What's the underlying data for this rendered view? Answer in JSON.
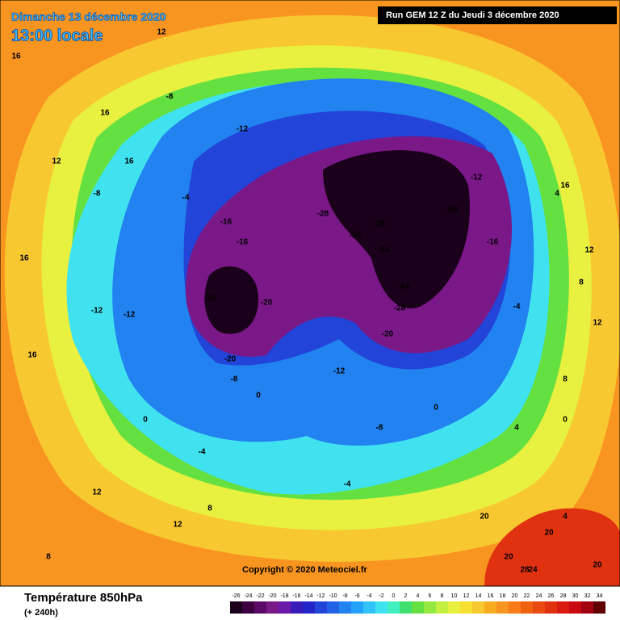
{
  "header": {
    "date": "Dimanche 13 décembre 2020",
    "time": "13:00 locale",
    "run": "Run GEM 12 Z du Jeudi 3 décembre 2020"
  },
  "footer": {
    "title": "Température 850hPa",
    "lead": "(+ 240h)",
    "copyright": "Copyright © 2020 Meteociel.fr"
  },
  "colorbar": {
    "ticks": [
      -26,
      -24,
      -22,
      -20,
      -18,
      -16,
      -14,
      -12,
      -10,
      -8,
      -6,
      -4,
      -2,
      0,
      2,
      4,
      6,
      8,
      10,
      12,
      14,
      16,
      18,
      20,
      22,
      24,
      26,
      28,
      30,
      32,
      34
    ],
    "colors": [
      "#1a001a",
      "#3c0040",
      "#5a0a66",
      "#7a1888",
      "#6a1aa8",
      "#3a1ab8",
      "#2424c8",
      "#2244d8",
      "#2262e6",
      "#2282f0",
      "#22a2f8",
      "#30c4f8",
      "#40e2f0",
      "#40f0c0",
      "#40e070",
      "#64e040",
      "#94e840",
      "#c4f040",
      "#e8f040",
      "#f8e030",
      "#f8c830",
      "#f8ac20",
      "#f89420",
      "#f87a18",
      "#f06210",
      "#e84a10",
      "#e03210",
      "#d81a10",
      "#c80a10",
      "#a00010",
      "#600000"
    ]
  },
  "contour_labels": [
    16,
    16,
    12,
    12,
    16,
    16,
    12,
    12,
    8,
    8,
    4,
    0,
    -4,
    -8,
    -12,
    -16,
    -20,
    -24,
    -28,
    -28,
    -28,
    -20,
    -24,
    -28,
    -20,
    -24,
    -20,
    -12,
    -12,
    -8,
    -4,
    0,
    0,
    4,
    8,
    -4,
    -8,
    -12,
    -16,
    20,
    20,
    24,
    28,
    20,
    16,
    12,
    8,
    4,
    0,
    -4,
    -16,
    -12,
    -8,
    12,
    16,
    20
  ]
}
